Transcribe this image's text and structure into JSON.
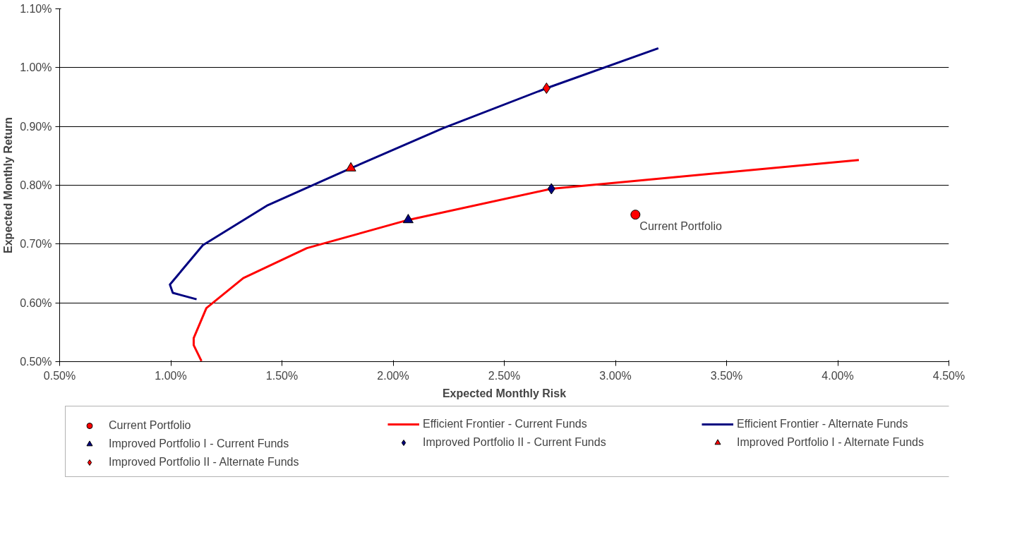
{
  "chart_data": {
    "type": "line",
    "xlabel": "Expected Monthly Risk",
    "ylabel": "Expected Monthly Return",
    "xlim": [
      0.5,
      4.5
    ],
    "ylim": [
      0.5,
      1.1
    ],
    "xticks": [
      {
        "value": 0.5,
        "label": "0.50%"
      },
      {
        "value": 1.0,
        "label": "1.00%"
      },
      {
        "value": 1.5,
        "label": "1.50%"
      },
      {
        "value": 2.0,
        "label": "2.00%"
      },
      {
        "value": 2.5,
        "label": "2.50%"
      },
      {
        "value": 3.0,
        "label": "3.00%"
      },
      {
        "value": 3.5,
        "label": "3.50%"
      },
      {
        "value": 4.0,
        "label": "4.00%"
      },
      {
        "value": 4.5,
        "label": "4.50%"
      }
    ],
    "yticks": [
      {
        "value": 0.5,
        "label": "0.50%"
      },
      {
        "value": 0.6,
        "label": "0.60%"
      },
      {
        "value": 0.7,
        "label": "0.70%"
      },
      {
        "value": 0.8,
        "label": "0.80%"
      },
      {
        "value": 0.9,
        "label": "0.90%"
      },
      {
        "value": 1.0,
        "label": "1.00%"
      },
      {
        "value": 1.1,
        "label": "1.10%"
      }
    ],
    "grid": "y",
    "legend": "bottom",
    "annotations": [
      {
        "text": "Current Portfolio",
        "x": 3.09,
        "y": 0.75
      }
    ],
    "series": [
      {
        "name": "Current Portfolio",
        "type": "scatter",
        "marker": "circle",
        "color": "#ff0000",
        "x": [
          3.09
        ],
        "values": [
          0.75
        ]
      },
      {
        "name": "Efficient Frontier - Current Funds",
        "marker": "none",
        "color": "#ff0000",
        "x": [
          1.138,
          1.103,
          1.103,
          1.16,
          1.326,
          1.612,
          2.068,
          2.712,
          4.095
        ],
        "values": [
          0.501,
          0.528,
          0.54,
          0.591,
          0.642,
          0.693,
          0.741,
          0.794,
          0.843
        ]
      },
      {
        "name": "Efficient Frontier - Alternate Funds",
        "marker": "none",
        "color": "#000080",
        "x": [
          1.116,
          1.009,
          0.996,
          1.144,
          1.436,
          1.81,
          2.225,
          2.69,
          3.193
        ],
        "values": [
          0.606,
          0.617,
          0.631,
          0.698,
          0.766,
          0.829,
          0.897,
          0.965,
          1.033
        ]
      },
      {
        "name": "Improved Portfolio I - Current Funds",
        "type": "scatter",
        "marker": "triangle",
        "color": "#000080",
        "x": [
          2.068
        ],
        "values": [
          0.741
        ]
      },
      {
        "name": "Improved Portfolio II - Current Funds",
        "type": "scatter",
        "marker": "diamond",
        "color": "#000080",
        "x": [
          2.712
        ],
        "values": [
          0.794
        ]
      },
      {
        "name": "Improved Portfolio I - Alternate Funds",
        "type": "scatter",
        "marker": "triangle",
        "color": "#ff0000",
        "x": [
          1.81
        ],
        "values": [
          0.829
        ]
      },
      {
        "name": "Improved Portfolio II - Alternate Funds",
        "type": "scatter",
        "marker": "diamond",
        "color": "#ff0000",
        "x": [
          2.69
        ],
        "values": [
          0.965
        ]
      }
    ]
  }
}
